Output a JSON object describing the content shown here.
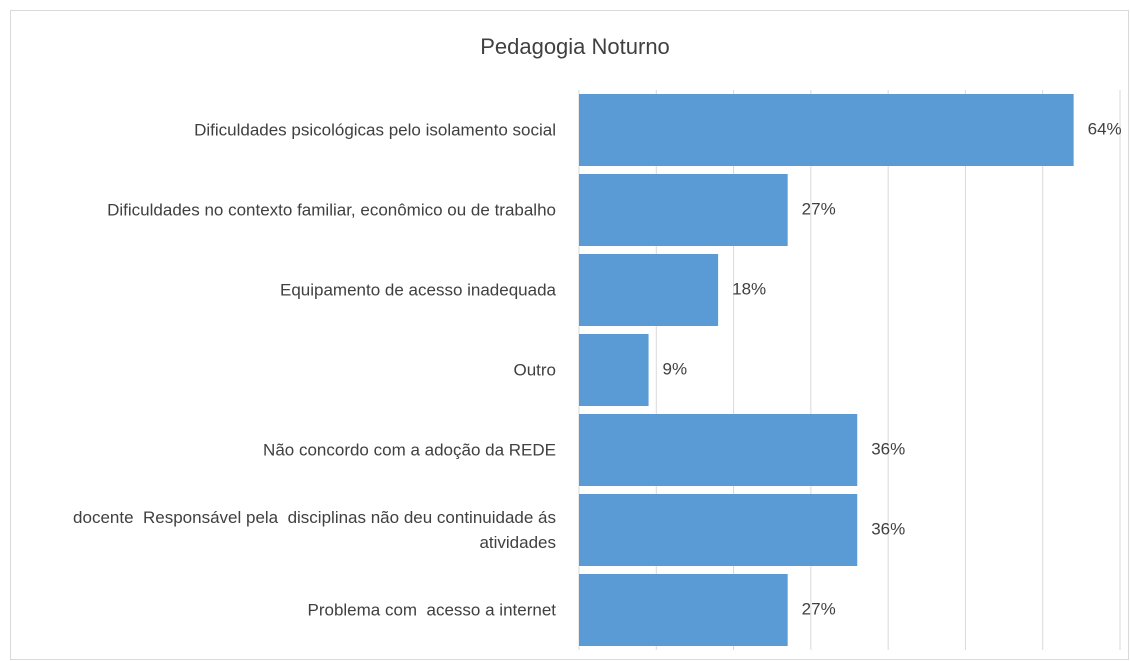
{
  "chart_data": {
    "type": "bar",
    "orientation": "horizontal",
    "title": "Pedagogia Noturno",
    "categories": [
      "Dificuldades psicológicas pelo isolamento social",
      "Dificuldades no contexto familiar, econômico ou de trabalho",
      "Equipamento de acesso inadequada",
      "Outro",
      "Não concordo com a adoção da REDE",
      "docente  Responsável pela  disciplinas não deu continuidade ás atividades",
      "Problema com  acesso a internet"
    ],
    "values": [
      64,
      27,
      18,
      9,
      36,
      36,
      27
    ],
    "value_labels": [
      "64%",
      "27%",
      "18%",
      "9%",
      "36%",
      "36%",
      "27%"
    ],
    "color": "#5b9bd5",
    "xlim": [
      0,
      70
    ],
    "xticks": [
      0,
      10,
      20,
      30,
      40,
      50,
      60,
      70
    ],
    "grid": true
  }
}
